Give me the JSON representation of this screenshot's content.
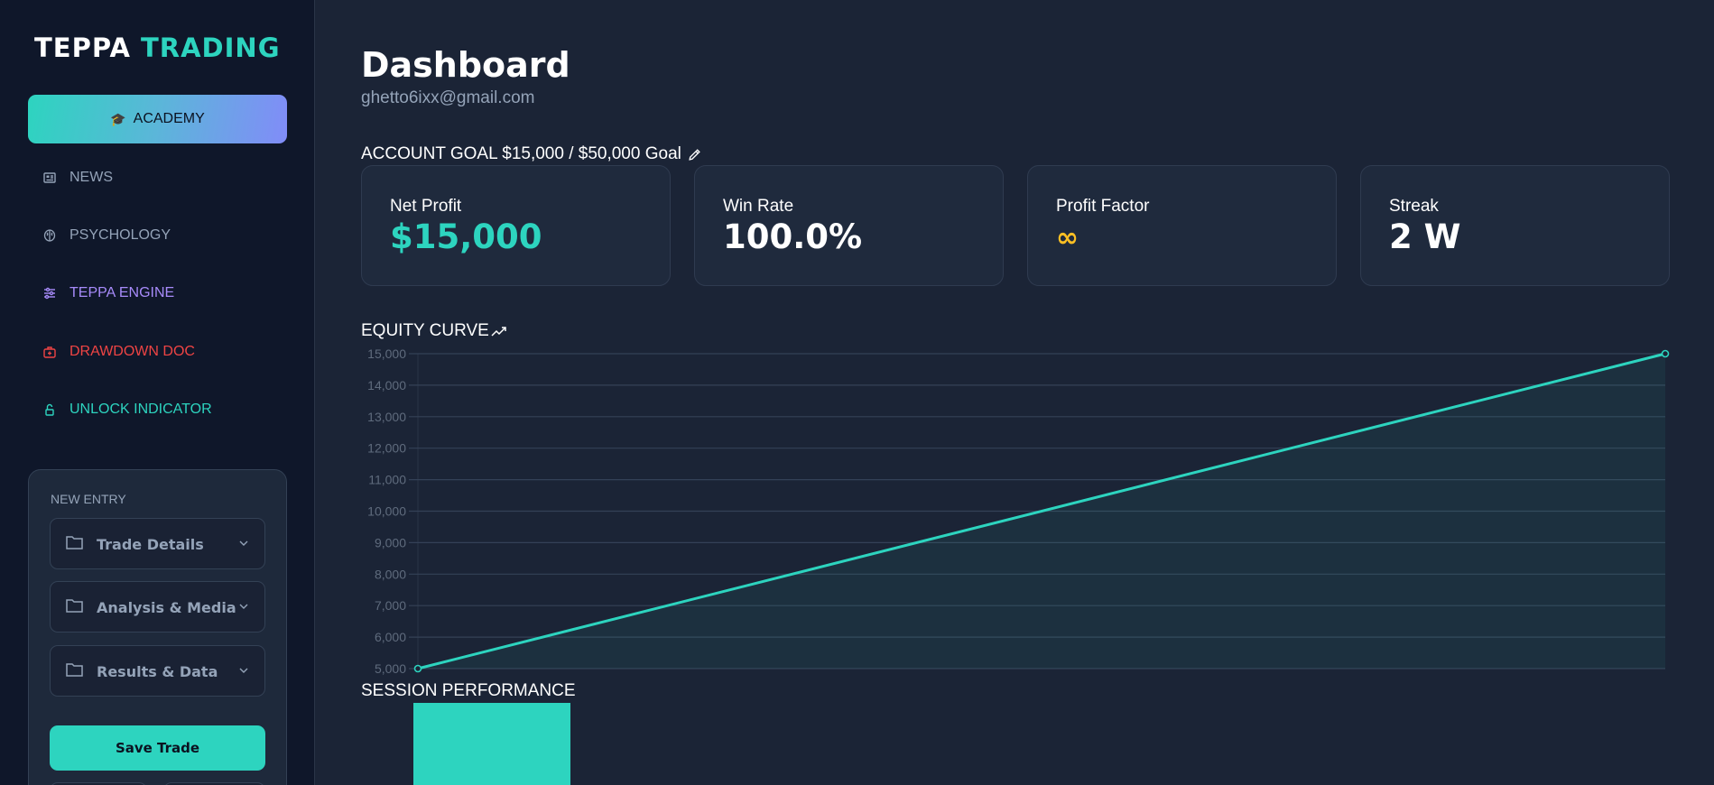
{
  "sidebar": {
    "logo": {
      "part1": "TEPPA",
      "part2": "TRADING"
    },
    "academy": {
      "icon": "graduation-cap-icon",
      "glyph": "🎓",
      "label": "ACADEMY"
    },
    "nav": [
      {
        "label": "NEWS",
        "icon": "newspaper-icon",
        "color": "#94a3b8"
      },
      {
        "label": "PSYCHOLOGY",
        "icon": "brain-icon",
        "color": "#94a3b8"
      },
      {
        "label": "TEPPA ENGINE",
        "icon": "sliders-icon",
        "color": "#a78bfa"
      },
      {
        "label": "DRAWDOWN DOC",
        "icon": "medical-kit-icon",
        "color": "#ef4444"
      },
      {
        "label": "UNLOCK INDICATOR",
        "icon": "unlock-icon",
        "color": "#2dd4bf"
      }
    ],
    "new_entry": {
      "label": "NEW ENTRY",
      "sections": [
        {
          "label": "Trade Details",
          "icon": "folder-icon"
        },
        {
          "label": "Analysis & Media",
          "icon": "folder-icon"
        },
        {
          "label": "Results & Data",
          "icon": "folder-icon"
        }
      ],
      "save_label": "Save Trade"
    }
  },
  "header": {
    "title": "Dashboard",
    "email": "ghetto6ixx@gmail.com",
    "goal_text": "ACCOUNT GOAL $15,000 / $50,000 Goal"
  },
  "stats": [
    {
      "label": "Net Profit",
      "value": "$15,000",
      "color": "#2dd4bf"
    },
    {
      "label": "Win Rate",
      "value": "100.0%",
      "color": "#ffffff"
    },
    {
      "label": "Profit Factor",
      "value": "∞",
      "color": "#fbbf24"
    },
    {
      "label": "Streak",
      "value": "2 W",
      "color": "#ffffff"
    }
  ],
  "equity": {
    "title": "EQUITY CURVE",
    "icon": "trending-up-icon"
  },
  "session": {
    "title": "SESSION PERFORMANCE"
  },
  "chart_data": [
    {
      "type": "line",
      "title": "EQUITY CURVE",
      "x": [
        0,
        1
      ],
      "values": [
        5000,
        15000
      ],
      "yticks": [
        5000,
        6000,
        7000,
        8000,
        9000,
        10000,
        11000,
        12000,
        13000,
        14000,
        15000
      ],
      "ytick_labels": [
        "5,000",
        "6,000",
        "7,000",
        "8,000",
        "9,000",
        "10,000",
        "11,000",
        "12,000",
        "13,000",
        "14,000",
        "15,000"
      ],
      "ylim": [
        5000,
        15000
      ],
      "grid": true,
      "area_fill": true,
      "line_color": "#2dd4bf"
    },
    {
      "type": "bar",
      "title": "SESSION PERFORMANCE",
      "categories": [
        ""
      ],
      "values": [
        1
      ],
      "bar_color": "#2dd4bf"
    }
  ]
}
